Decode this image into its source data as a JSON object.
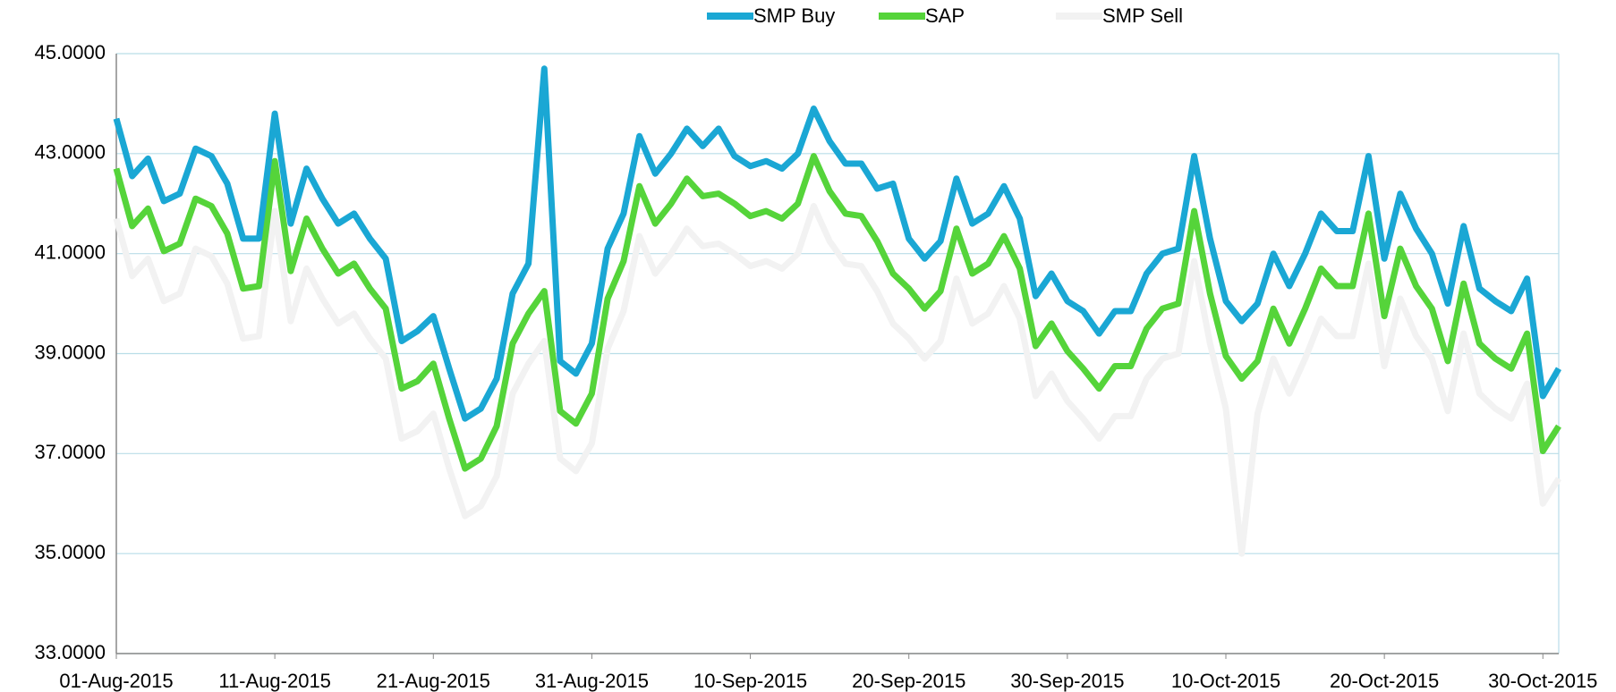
{
  "chart_data": {
    "type": "line",
    "categories": [
      "01-Aug-2015",
      null,
      null,
      null,
      null,
      null,
      null,
      null,
      null,
      null,
      "11-Aug-2015",
      null,
      null,
      null,
      null,
      null,
      null,
      null,
      null,
      null,
      "21-Aug-2015",
      null,
      null,
      null,
      null,
      null,
      null,
      null,
      null,
      null,
      "31-Aug-2015",
      null,
      null,
      null,
      null,
      null,
      null,
      null,
      null,
      null,
      "10-Sep-2015",
      null,
      null,
      null,
      null,
      null,
      null,
      null,
      null,
      null,
      "20-Sep-2015",
      null,
      null,
      null,
      null,
      null,
      null,
      null,
      null,
      null,
      "30-Sep-2015",
      null,
      null,
      null,
      null,
      null,
      null,
      null,
      null,
      null,
      "10-Oct-2015",
      null,
      null,
      null,
      null,
      null,
      null,
      null,
      null,
      null,
      "20-Oct-2015",
      null,
      null,
      null,
      null,
      null,
      null,
      null,
      null,
      null,
      "30-Oct-2015",
      null
    ],
    "series": [
      {
        "name": "SMP Buy",
        "color": "#1aa7d4",
        "values": [
          43.7,
          42.55,
          42.9,
          42.05,
          42.2,
          43.1,
          42.95,
          42.4,
          41.3,
          41.3,
          43.8,
          41.6,
          42.7,
          42.1,
          41.6,
          41.8,
          41.3,
          40.9,
          39.25,
          39.45,
          39.75,
          38.7,
          37.7,
          37.9,
          38.5,
          40.2,
          40.8,
          44.7,
          38.85,
          38.6,
          39.2,
          41.1,
          41.8,
          43.35,
          42.6,
          43.0,
          43.5,
          43.15,
          43.5,
          42.95,
          42.75,
          42.85,
          42.7,
          43.0,
          43.9,
          43.25,
          42.8,
          42.8,
          42.3,
          42.4,
          41.3,
          40.9,
          41.25,
          42.5,
          41.6,
          41.8,
          42.35,
          41.7,
          40.15,
          40.6,
          40.05,
          39.85,
          39.4,
          39.85,
          39.85,
          40.6,
          41.0,
          41.1,
          42.95,
          41.3,
          40.05,
          39.65,
          40.0,
          41.0,
          40.35,
          41.0,
          41.8,
          41.45,
          41.45,
          42.95,
          40.9,
          42.2,
          41.5,
          41.0,
          40.0,
          41.55,
          40.3,
          40.05,
          39.85,
          40.5,
          38.15,
          38.7
        ]
      },
      {
        "name": "SAP",
        "color": "#55d43a",
        "values": [
          42.7,
          41.55,
          41.9,
          41.05,
          41.2,
          42.1,
          41.95,
          41.4,
          40.3,
          40.35,
          42.85,
          40.65,
          41.7,
          41.1,
          40.6,
          40.8,
          40.3,
          39.9,
          38.3,
          38.45,
          38.8,
          37.7,
          36.7,
          36.9,
          37.55,
          39.2,
          39.8,
          40.25,
          37.85,
          37.6,
          38.2,
          40.1,
          40.85,
          42.35,
          41.6,
          42.0,
          42.5,
          42.15,
          42.2,
          42.0,
          41.75,
          41.85,
          41.7,
          42.0,
          42.95,
          42.25,
          41.8,
          41.75,
          41.25,
          40.6,
          40.3,
          39.9,
          40.25,
          41.5,
          40.6,
          40.8,
          41.35,
          40.7,
          39.15,
          39.6,
          39.05,
          38.7,
          38.3,
          38.75,
          38.75,
          39.5,
          39.9,
          40.0,
          41.85,
          40.2,
          38.95,
          38.5,
          38.85,
          39.9,
          39.2,
          39.9,
          40.7,
          40.35,
          40.35,
          41.8,
          39.75,
          41.1,
          40.35,
          39.9,
          38.85,
          40.4,
          39.2,
          38.9,
          38.7,
          39.4,
          37.05,
          37.55
        ]
      },
      {
        "name": "SMP Sell",
        "color": "#f2f2f2",
        "values": [
          41.7,
          40.55,
          40.9,
          40.05,
          40.2,
          41.1,
          40.95,
          40.4,
          39.3,
          39.35,
          41.85,
          39.65,
          40.7,
          40.1,
          39.6,
          39.8,
          39.3,
          38.9,
          37.3,
          37.45,
          37.8,
          36.7,
          35.75,
          35.95,
          36.55,
          38.2,
          38.8,
          39.25,
          36.9,
          36.65,
          37.2,
          39.1,
          39.85,
          41.35,
          40.6,
          41.0,
          41.5,
          41.15,
          41.2,
          41.0,
          40.75,
          40.85,
          40.7,
          41.0,
          41.95,
          41.25,
          40.8,
          40.75,
          40.25,
          39.6,
          39.3,
          38.9,
          39.25,
          40.5,
          39.6,
          39.8,
          40.35,
          39.7,
          38.15,
          38.6,
          38.05,
          37.7,
          37.3,
          37.75,
          37.75,
          38.5,
          38.9,
          39.0,
          40.85,
          39.2,
          37.9,
          35.0,
          37.8,
          38.9,
          38.2,
          38.9,
          39.7,
          39.35,
          39.35,
          40.8,
          38.75,
          40.1,
          39.35,
          38.9,
          37.85,
          39.4,
          38.2,
          37.9,
          37.7,
          38.4,
          36.0,
          36.5
        ]
      }
    ],
    "ylim": [
      33,
      45
    ],
    "yticks": [
      {
        "value": 33,
        "label": "33.0000"
      },
      {
        "value": 35,
        "label": "35.0000"
      },
      {
        "value": 37,
        "label": "37.0000"
      },
      {
        "value": 39,
        "label": "39.0000"
      },
      {
        "value": 41,
        "label": "41.0000"
      },
      {
        "value": 43,
        "label": "43.0000"
      },
      {
        "value": 45,
        "label": "45.0000"
      }
    ],
    "grid": true,
    "legend": "top"
  }
}
